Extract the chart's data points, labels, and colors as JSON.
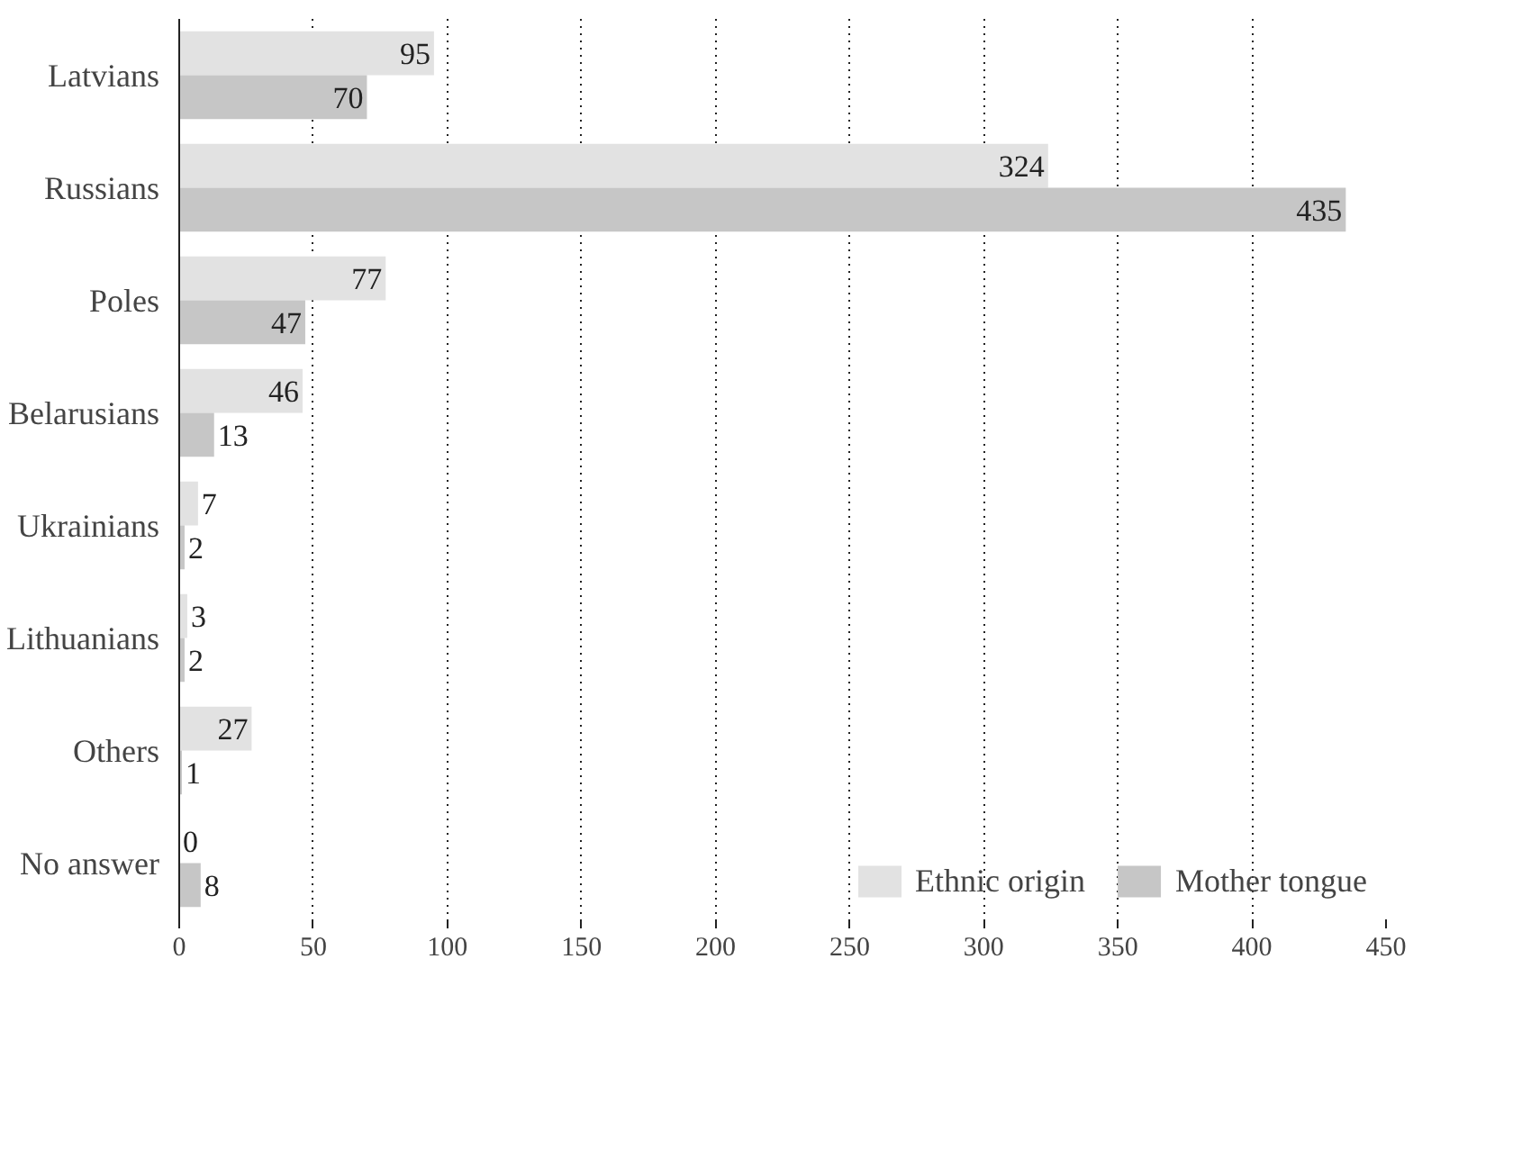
{
  "chart_data": {
    "type": "bar",
    "orientation": "horizontal",
    "categories": [
      "Latvians",
      "Russians",
      "Poles",
      "Belarusians",
      "Ukrainians",
      "Lithuanians",
      "Others",
      "No answer"
    ],
    "series": [
      {
        "name": "Ethnic origin",
        "color": "#e2e2e2",
        "values": [
          95,
          324,
          77,
          46,
          7,
          3,
          27,
          0
        ]
      },
      {
        "name": "Mother tongue",
        "color": "#c6c6c6",
        "values": [
          70,
          435,
          47,
          13,
          2,
          2,
          1,
          8
        ]
      }
    ],
    "xlim": [
      0,
      450
    ],
    "xticks": [
      0,
      50,
      100,
      150,
      200,
      250,
      300,
      350,
      400,
      450
    ],
    "grid": "x",
    "legend": "bottom right",
    "data_labels": true
  }
}
